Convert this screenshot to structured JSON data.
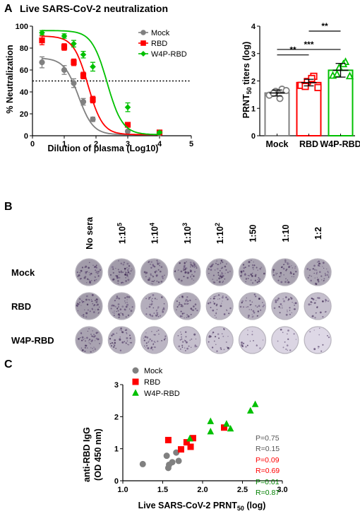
{
  "panels": {
    "a": "A",
    "b": "B",
    "c": "C"
  },
  "chart_data": [
    {
      "id": "A-left",
      "type": "line",
      "title": "Live SARS-CoV-2 neutralization",
      "xlabel": "Dilution of plasma (Log10)",
      "ylabel": "% Neutralization",
      "xlim": [
        0,
        5
      ],
      "ylim": [
        0,
        100
      ],
      "xticks": [
        "0",
        "1",
        "2",
        "3",
        "4",
        "5"
      ],
      "yticks": [
        "0",
        "20",
        "40",
        "60",
        "80",
        "100"
      ],
      "threshold": 50,
      "legend_position": "top-right",
      "series": [
        {
          "name": "Mock",
          "color": "#808080",
          "marker": "circle",
          "x": [
            0.3,
            1.0,
            1.3,
            1.6,
            1.9,
            3.0,
            4.0
          ],
          "y": [
            67,
            60,
            48,
            31,
            15,
            4,
            2
          ],
          "err": [
            5,
            4,
            4,
            3,
            2,
            1,
            1
          ],
          "curve": {
            "bottom": 1,
            "top": 71,
            "ec50": 1.45,
            "hill": 1.9
          }
        },
        {
          "name": "RBD",
          "color": "#ff0000",
          "marker": "square",
          "x": [
            0.3,
            1.0,
            1.3,
            1.6,
            1.9,
            3.0,
            4.0
          ],
          "y": [
            87,
            81,
            67,
            55,
            33,
            10,
            3
          ],
          "err": [
            4,
            3,
            3,
            3,
            3,
            1,
            1
          ],
          "curve": {
            "bottom": 1,
            "top": 91,
            "ec50": 1.75,
            "hill": 1.9
          }
        },
        {
          "name": "W4P-RBD",
          "color": "#00c000",
          "marker": "diamond",
          "x": [
            0.3,
            1.0,
            1.3,
            1.6,
            1.9,
            3.0,
            4.0
          ],
          "y": [
            94,
            91,
            84,
            74,
            63,
            26,
            3
          ],
          "err": [
            2,
            2,
            3,
            3,
            4,
            4,
            1
          ],
          "curve": {
            "bottom": 1,
            "top": 96,
            "ec50": 2.35,
            "hill": 1.8
          }
        }
      ]
    },
    {
      "id": "A-right",
      "type": "bar",
      "ylabel": "PRNT50 titers (log)",
      "ylabel_main": "PRNT",
      "ylabel_sub": "50",
      "ylabel_rest": " titers (log)",
      "ylim": [
        0,
        4
      ],
      "yticks": [
        "0",
        "1",
        "2",
        "3",
        "4"
      ],
      "categories": [
        "Mock",
        "RBD",
        "W4P-RBD"
      ],
      "colors": [
        "#808080",
        "#ff0000",
        "#00c000"
      ],
      "markers": [
        "circle",
        "square",
        "triangle"
      ],
      "values": [
        1.56,
        1.94,
        2.39
      ],
      "errors": [
        0.11,
        0.12,
        0.25
      ],
      "points": [
        [
          1.48,
          1.62,
          1.7,
          1.55,
          1.36,
          1.65
        ],
        [
          1.84,
          1.98,
          2.17,
          1.8,
          2.09,
          1.76
        ],
        [
          2.19,
          2.48,
          2.69,
          2.24,
          2.61,
          2.17
        ]
      ],
      "significance": [
        {
          "from": 0,
          "to": 1,
          "label": "**"
        },
        {
          "from": 0,
          "to": 2,
          "label": "***"
        },
        {
          "from": 1,
          "to": 2,
          "label": "**"
        }
      ]
    },
    {
      "id": "C",
      "type": "scatter",
      "xlabel": "Live SARS-CoV-2 PRNT50 (log)",
      "xlabel_main": "Live SARS-CoV-2 PRNT",
      "xlabel_sub": "50",
      "xlabel_rest": " (log)",
      "ylabel": "anti-RBD IgG (OD 450 nm)",
      "ylabel_line1": "anti-RBD IgG",
      "ylabel_line2": "(OD 450 nm)",
      "xlim": [
        1.0,
        3.0
      ],
      "ylim": [
        0,
        3
      ],
      "xticks": [
        "1.0",
        "1.5",
        "2.0",
        "2.5",
        "3.0"
      ],
      "yticks": [
        "0",
        "1",
        "2",
        "3"
      ],
      "legend_position": "top-left",
      "series": [
        {
          "name": "Mock",
          "color": "#808080",
          "marker": "circle",
          "x": [
            1.25,
            1.55,
            1.58,
            1.62,
            1.57,
            1.7,
            1.67
          ],
          "y": [
            0.52,
            0.78,
            0.5,
            0.58,
            0.4,
            0.62,
            0.88
          ],
          "P": "P=0.75",
          "R": "R=0.15",
          "stat_color": "#555555"
        },
        {
          "name": "RBD",
          "color": "#ff0000",
          "marker": "square",
          "x": [
            1.57,
            1.73,
            1.8,
            1.85,
            1.88,
            2.27
          ],
          "y": [
            1.27,
            0.98,
            1.2,
            1.06,
            1.33,
            1.66
          ],
          "P": "P=0.09",
          "R": "R=0.69",
          "stat_color": "#ff0000"
        },
        {
          "name": "W4P-RBD",
          "color": "#00c000",
          "marker": "triangle",
          "x": [
            1.84,
            2.1,
            2.1,
            2.3,
            2.35,
            2.6,
            2.66
          ],
          "y": [
            1.31,
            1.85,
            1.53,
            1.77,
            1.62,
            2.18,
            2.38
          ],
          "P": "P=0.01",
          "R": "R=0.87",
          "stat_color": "#008000"
        }
      ]
    }
  ],
  "plaque_assay": {
    "dilutions": [
      "No sera",
      "1:10",
      "1:10",
      "1:10",
      "1:10",
      "1:50",
      "1:10",
      "1:2"
    ],
    "dilution_exps": [
      "",
      "5",
      "4",
      "3",
      "2",
      "",
      "",
      ""
    ],
    "rows": [
      {
        "label": "Mock",
        "density": [
          0.9,
          0.9,
          0.85,
          0.85,
          0.85,
          0.8,
          0.8,
          0.75
        ]
      },
      {
        "label": "RBD",
        "density": [
          0.9,
          0.8,
          0.65,
          0.7,
          0.55,
          0.6,
          0.5,
          0.4
        ]
      },
      {
        "label": "W4P-RBD",
        "density": [
          0.8,
          0.65,
          0.55,
          0.4,
          0.3,
          0.15,
          0.08,
          0.05
        ]
      }
    ]
  }
}
